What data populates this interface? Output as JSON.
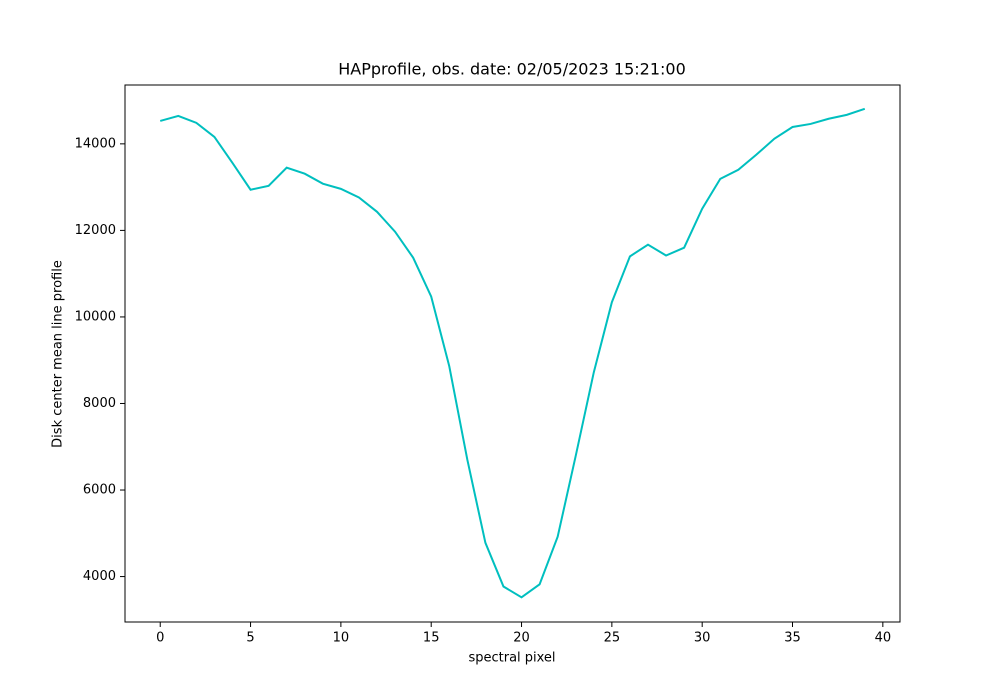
{
  "chart_data": {
    "type": "line",
    "title": "HAPprofile, obs. date: 02/05/2023 15:21:00",
    "xlabel": "spectral pixel",
    "ylabel": "Disk center mean line profile",
    "x": [
      0,
      1,
      2,
      3,
      4,
      5,
      6,
      7,
      8,
      9,
      10,
      11,
      12,
      13,
      14,
      15,
      16,
      17,
      18,
      19,
      20,
      21,
      22,
      23,
      24,
      25,
      26,
      27,
      28,
      29,
      30,
      31,
      32,
      33,
      34,
      35,
      36,
      37,
      38,
      39
    ],
    "series": [
      {
        "color": "#00bfbf",
        "values": [
          14530,
          14645,
          14485,
          14160,
          13560,
          12940,
          13030,
          13450,
          13310,
          13080,
          12960,
          12760,
          12430,
          11970,
          11370,
          10470,
          8860,
          6700,
          4780,
          3770,
          3520,
          3820,
          4920,
          6790,
          8720,
          10340,
          11400,
          11670,
          11420,
          11600,
          12500,
          13190,
          13400,
          13750,
          14120,
          14390,
          14460,
          14580,
          14670,
          14810
        ]
      }
    ],
    "xlim": [
      -1.95,
      40.95
    ],
    "xticks": [
      0,
      5,
      10,
      15,
      20,
      25,
      30,
      35,
      40
    ],
    "ylim": [
      2950,
      15360
    ],
    "yticks": [
      4000,
      6000,
      8000,
      10000,
      12000,
      14000
    ],
    "grid": false
  }
}
